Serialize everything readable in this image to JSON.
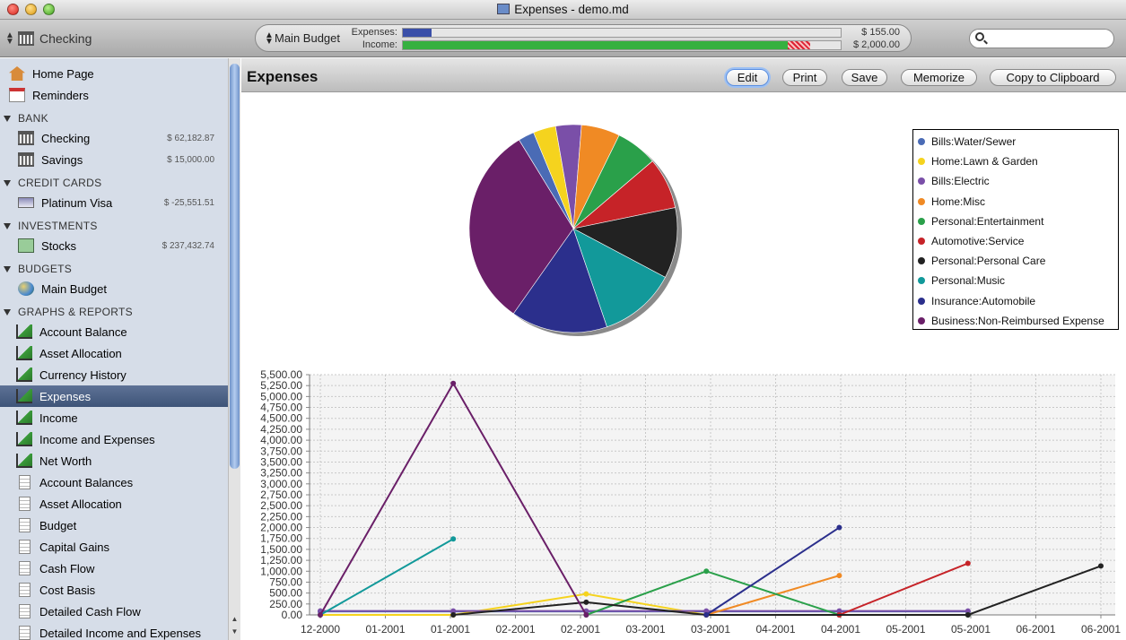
{
  "window": {
    "title": "Expenses - demo.md"
  },
  "toolbar": {
    "account": "Checking",
    "budget": {
      "name": "Main Budget",
      "expenses_label": "Expenses:",
      "expenses_value": "$ 155.00",
      "income_label": "Income:",
      "income_value": "$ 2,000.00",
      "expenses_fraction": 0.065,
      "income_fraction": 0.93,
      "income_over_fraction": 0.05
    },
    "search_placeholder": ""
  },
  "sidebar": {
    "home": "Home Page",
    "reminders": "Reminders",
    "bank_head": "BANK",
    "checking": "Checking",
    "checking_amt": "$ 62,182.87",
    "savings": "Savings",
    "savings_amt": "$ 15,000.00",
    "cc_head": "CREDIT CARDS",
    "visa": "Platinum Visa",
    "visa_amt": "$ -25,551.51",
    "inv_head": "INVESTMENTS",
    "stocks": "Stocks",
    "stocks_amt": "$ 237,432.74",
    "bud_head": "BUDGETS",
    "main_budget": "Main Budget",
    "gr_head": "GRAPHS & REPORTS",
    "graphs": [
      "Account Balance",
      "Asset Allocation",
      "Currency History",
      "Expenses",
      "Income",
      "Income and Expenses",
      "Net Worth"
    ],
    "reports": [
      "Account Balances",
      "Asset Allocation",
      "Budget",
      "Capital Gains",
      "Cash Flow",
      "Cost Basis",
      "Detailed Cash Flow",
      "Detailed Income and Expenses"
    ],
    "selected": "Expenses"
  },
  "header": {
    "title": "Expenses",
    "edit": "Edit",
    "print": "Print",
    "save": "Save",
    "memorize": "Memorize",
    "copy": "Copy to Clipboard"
  },
  "chart_data": [
    {
      "type": "pie",
      "title": "",
      "slices": [
        {
          "name": "Bills:Water/Sewer",
          "value": 2.5,
          "color": "#4a6bb5"
        },
        {
          "name": "Home:Lawn & Garden",
          "value": 3.5,
          "color": "#f5d31e"
        },
        {
          "name": "Bills:Electric",
          "value": 4,
          "color": "#7a4fa8"
        },
        {
          "name": "Home:Misc",
          "value": 6,
          "color": "#f08a24"
        },
        {
          "name": "Personal:Entertainment",
          "value": 6.5,
          "color": "#2aa04a"
        },
        {
          "name": "Automotive:Service",
          "value": 8,
          "color": "#c62328"
        },
        {
          "name": "Personal:Personal Care",
          "value": 11,
          "color": "#222222"
        },
        {
          "name": "Personal:Music",
          "value": 12,
          "color": "#12999a"
        },
        {
          "name": "Insurance:Automobile",
          "value": 15,
          "color": "#2b2f8c"
        },
        {
          "name": "Business:Non-Reimbursed Expense",
          "value": 31.5,
          "color": "#6a1f68"
        }
      ],
      "legend_position": "right"
    },
    {
      "type": "line",
      "title": "",
      "xlabel": "",
      "ylabel": "",
      "x_ticks": [
        "12-2000",
        "01-2001",
        "01-2001",
        "02-2001",
        "02-2001",
        "03-2001",
        "03-2001",
        "04-2001",
        "04-2001",
        "05-2001",
        "05-2001",
        "06-2001",
        "06-2001"
      ],
      "y_ticks": [
        "0.00",
        "250.00",
        "500.00",
        "750.00",
        "1,000.00",
        "1,250.00",
        "1,500.00",
        "1,750.00",
        "2,000.00",
        "2,250.00",
        "2,500.00",
        "2,750.00",
        "3,000.00",
        "3,250.00",
        "3,500.00",
        "3,750.00",
        "4,000.00",
        "4,250.00",
        "4,500.00",
        "4,750.00",
        "5,000.00",
        "5,250.00",
        "5,500.00"
      ],
      "ylim": [
        0,
        5500
      ],
      "grid": true,
      "series": [
        {
          "name": "Bills:Water/Sewer",
          "color": "#4a6bb5",
          "points": [
            [
              "2000-12-01",
              80
            ],
            [
              "2001-01-01",
              80
            ],
            [
              "2001-02-01",
              80
            ],
            [
              "2001-03-01",
              80
            ],
            [
              "2001-04-01",
              80
            ],
            [
              "2001-05-01",
              80
            ]
          ]
        },
        {
          "name": "Home:Lawn & Garden",
          "color": "#f5d31e",
          "points": [
            [
              "2000-12-01",
              0
            ],
            [
              "2001-01-01",
              0
            ],
            [
              "2001-02-01",
              480
            ],
            [
              "2001-03-01",
              0
            ]
          ]
        },
        {
          "name": "Bills:Electric",
          "color": "#7a4fa8",
          "points": [
            [
              "2000-12-01",
              90
            ],
            [
              "2001-01-01",
              90
            ],
            [
              "2001-02-01",
              90
            ],
            [
              "2001-03-01",
              90
            ],
            [
              "2001-04-01",
              90
            ],
            [
              "2001-05-01",
              90
            ]
          ]
        },
        {
          "name": "Home:Misc",
          "color": "#f08a24",
          "points": [
            [
              "2001-03-01",
              0
            ],
            [
              "2001-04-01",
              900
            ]
          ]
        },
        {
          "name": "Personal:Entertainment",
          "color": "#2aa04a",
          "points": [
            [
              "2001-02-01",
              0
            ],
            [
              "2001-03-01",
              1000
            ],
            [
              "2001-04-01",
              0
            ],
            [
              "2001-05-01",
              0
            ]
          ]
        },
        {
          "name": "Automotive:Service",
          "color": "#c62328",
          "points": [
            [
              "2001-04-01",
              0
            ],
            [
              "2001-05-01",
              1180
            ]
          ]
        },
        {
          "name": "Personal:Personal Care",
          "color": "#222222",
          "points": [
            [
              "2001-01-01",
              0
            ],
            [
              "2001-02-01",
              290
            ],
            [
              "2001-03-01",
              0
            ],
            [
              "2001-05-01",
              0
            ],
            [
              "2001-06-01",
              1120
            ]
          ]
        },
        {
          "name": "Personal:Music",
          "color": "#12999a",
          "points": [
            [
              "2000-12-01",
              0
            ],
            [
              "2001-01-01",
              1740
            ]
          ]
        },
        {
          "name": "Insurance:Automobile",
          "color": "#2b2f8c",
          "points": [
            [
              "2001-03-01",
              0
            ],
            [
              "2001-04-01",
              2000
            ]
          ]
        },
        {
          "name": "Business:Non-Reimbursed Expense",
          "color": "#6a1f68",
          "points": [
            [
              "2000-12-01",
              0
            ],
            [
              "2001-01-01",
              5300
            ],
            [
              "2001-02-01",
              0
            ]
          ]
        }
      ]
    }
  ]
}
